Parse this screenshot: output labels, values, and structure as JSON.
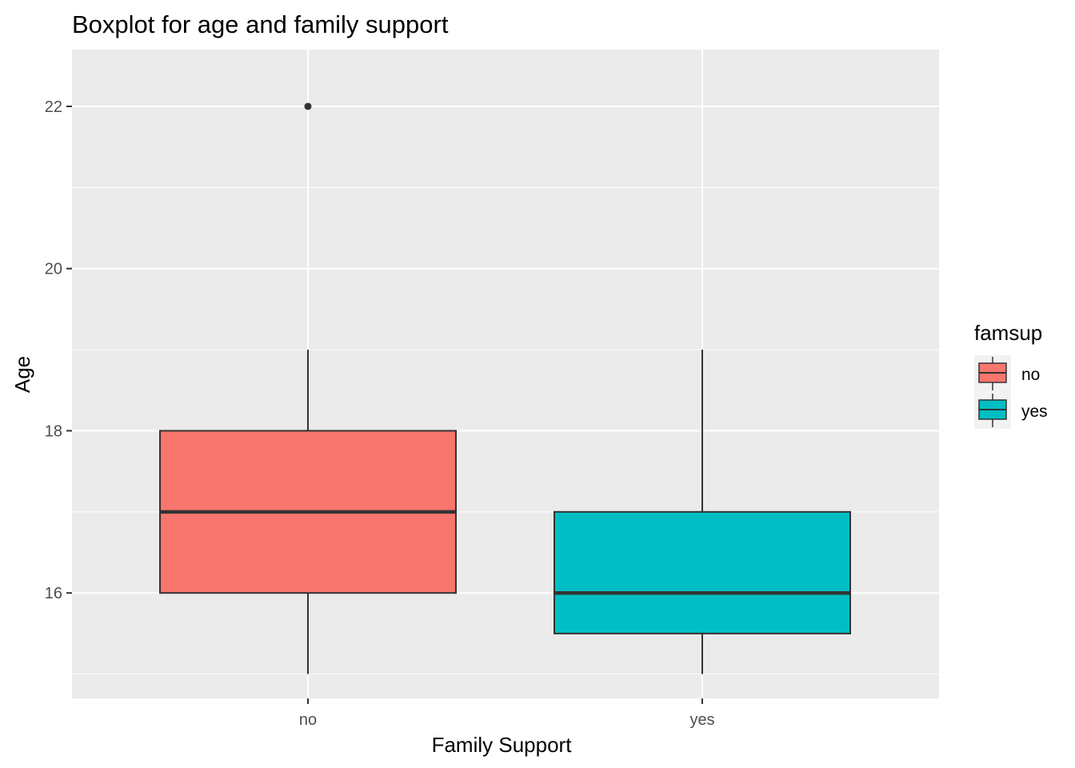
{
  "chart_data": {
    "type": "boxplot",
    "title": "Boxplot for age and family support",
    "xlabel": "Family Support",
    "ylabel": "Age",
    "categories": [
      "no",
      "yes"
    ],
    "ylim": [
      14.7,
      22.7
    ],
    "yticks": [
      16,
      18,
      20,
      22
    ],
    "grid": true,
    "legend": {
      "title": "famsup",
      "position": "right",
      "entries": [
        {
          "label": "no",
          "color": "#F8766D"
        },
        {
          "label": "yes",
          "color": "#00BFC4"
        }
      ]
    },
    "boxes": [
      {
        "category": "no",
        "min": 15,
        "q1": 16,
        "median": 17,
        "q3": 18,
        "max": 19,
        "outliers": [
          22
        ],
        "color": "#F8766D"
      },
      {
        "category": "yes",
        "min": 15,
        "q1": 15.5,
        "median": 16,
        "q3": 17,
        "max": 19,
        "outliers": [],
        "color": "#00BFC4"
      }
    ]
  }
}
